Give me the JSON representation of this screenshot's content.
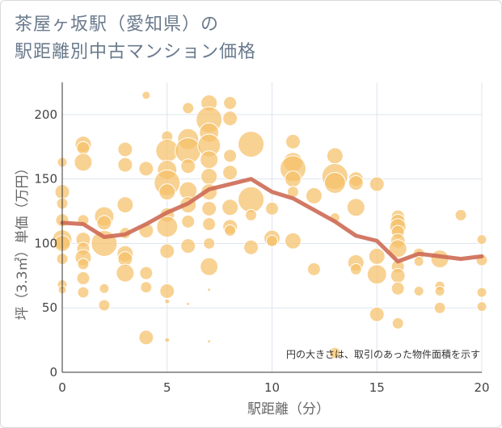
{
  "title_line1": "茶屋ヶ坂駅（愛知県）の",
  "title_line2": "駅距離別中古マンション価格",
  "chart_data": {
    "type": "scatter",
    "title": "茶屋ヶ坂駅（愛知県）の駅距離別中古マンション価格",
    "xlabel": "駅距離（分）",
    "ylabel": "坪（3.3㎡）単価（万円）",
    "xlim": [
      0,
      20
    ],
    "ylim": [
      0,
      225
    ],
    "xticks": [
      "0",
      "5",
      "10",
      "15",
      "20"
    ],
    "yticks": [
      "0",
      "50",
      "100",
      "150",
      "200"
    ],
    "note": "円の大きさは、取引のあった物件面積を示す",
    "colors": {
      "bubble": "#f5c06a",
      "line": "#cd6a55",
      "grid": "#dce5ee"
    },
    "trend": {
      "x": [
        0,
        1,
        2,
        3,
        4,
        5,
        6,
        7,
        8,
        9,
        10,
        11,
        12,
        13,
        14,
        15,
        16,
        17,
        18,
        19,
        20
      ],
      "y": [
        116,
        115,
        105,
        107,
        115,
        124,
        131,
        142,
        146,
        150,
        140,
        135,
        126,
        117,
        106,
        102,
        86,
        92,
        90,
        88,
        90
      ]
    },
    "points": [
      {
        "x": 0,
        "y": 163,
        "s": 6
      },
      {
        "x": 0,
        "y": 140,
        "s": 9
      },
      {
        "x": 0,
        "y": 131,
        "s": 7
      },
      {
        "x": 0,
        "y": 118,
        "s": 8
      },
      {
        "x": 0,
        "y": 103,
        "s": 12
      },
      {
        "x": 0,
        "y": 100,
        "s": 10
      },
      {
        "x": 0,
        "y": 88,
        "s": 7
      },
      {
        "x": 0,
        "y": 68,
        "s": 6
      },
      {
        "x": 0,
        "y": 64,
        "s": 5
      },
      {
        "x": 1,
        "y": 177,
        "s": 10
      },
      {
        "x": 1,
        "y": 174,
        "s": 8
      },
      {
        "x": 1,
        "y": 163,
        "s": 11
      },
      {
        "x": 1,
        "y": 118,
        "s": 7
      },
      {
        "x": 1,
        "y": 103,
        "s": 9
      },
      {
        "x": 1,
        "y": 96,
        "s": 8
      },
      {
        "x": 1,
        "y": 89,
        "s": 10
      },
      {
        "x": 1,
        "y": 84,
        "s": 7
      },
      {
        "x": 1,
        "y": 73,
        "s": 8
      },
      {
        "x": 1,
        "y": 62,
        "s": 7
      },
      {
        "x": 2,
        "y": 121,
        "s": 12
      },
      {
        "x": 2,
        "y": 116,
        "s": 9
      },
      {
        "x": 2,
        "y": 100,
        "s": 16
      },
      {
        "x": 2,
        "y": 65,
        "s": 6
      },
      {
        "x": 2,
        "y": 52,
        "s": 7
      },
      {
        "x": 3,
        "y": 173,
        "s": 9
      },
      {
        "x": 3,
        "y": 161,
        "s": 9
      },
      {
        "x": 3,
        "y": 130,
        "s": 10
      },
      {
        "x": 3,
        "y": 92,
        "s": 10
      },
      {
        "x": 3,
        "y": 88,
        "s": 9
      },
      {
        "x": 3,
        "y": 77,
        "s": 11
      },
      {
        "x": 3,
        "y": 108,
        "s": 7
      },
      {
        "x": 4,
        "y": 158,
        "s": 9
      },
      {
        "x": 4,
        "y": 110,
        "s": 9
      },
      {
        "x": 4,
        "y": 77,
        "s": 8
      },
      {
        "x": 4,
        "y": 66,
        "s": 7
      },
      {
        "x": 4,
        "y": 27,
        "s": 9
      },
      {
        "x": 4,
        "y": 215,
        "s": 5
      },
      {
        "x": 5,
        "y": 183,
        "s": 7
      },
      {
        "x": 5,
        "y": 172,
        "s": 14
      },
      {
        "x": 5,
        "y": 157,
        "s": 12
      },
      {
        "x": 5,
        "y": 147,
        "s": 16
      },
      {
        "x": 5,
        "y": 140,
        "s": 10
      },
      {
        "x": 5,
        "y": 122,
        "s": 9
      },
      {
        "x": 5,
        "y": 113,
        "s": 13
      },
      {
        "x": 5,
        "y": 94,
        "s": 9
      },
      {
        "x": 5,
        "y": 63,
        "s": 9
      },
      {
        "x": 5,
        "y": 55,
        "s": 3
      },
      {
        "x": 5,
        "y": 25,
        "s": 3
      },
      {
        "x": 6,
        "y": 205,
        "s": 7
      },
      {
        "x": 6,
        "y": 181,
        "s": 13
      },
      {
        "x": 6,
        "y": 172,
        "s": 16
      },
      {
        "x": 6,
        "y": 160,
        "s": 9
      },
      {
        "x": 6,
        "y": 141,
        "s": 11
      },
      {
        "x": 6,
        "y": 130,
        "s": 10
      },
      {
        "x": 6,
        "y": 117,
        "s": 8
      },
      {
        "x": 6,
        "y": 98,
        "s": 9
      },
      {
        "x": 6,
        "y": 53,
        "s": 2
      },
      {
        "x": 7,
        "y": 209,
        "s": 10
      },
      {
        "x": 7,
        "y": 196,
        "s": 16
      },
      {
        "x": 7,
        "y": 186,
        "s": 12
      },
      {
        "x": 7,
        "y": 176,
        "s": 14
      },
      {
        "x": 7,
        "y": 165,
        "s": 11
      },
      {
        "x": 7,
        "y": 152,
        "s": 10
      },
      {
        "x": 7,
        "y": 140,
        "s": 10
      },
      {
        "x": 7,
        "y": 127,
        "s": 9
      },
      {
        "x": 7,
        "y": 115,
        "s": 8
      },
      {
        "x": 7,
        "y": 100,
        "s": 7
      },
      {
        "x": 7,
        "y": 82,
        "s": 11
      },
      {
        "x": 7,
        "y": 64,
        "s": 2
      },
      {
        "x": 7,
        "y": 24,
        "s": 2
      },
      {
        "x": 8,
        "y": 209,
        "s": 8
      },
      {
        "x": 8,
        "y": 197,
        "s": 9
      },
      {
        "x": 8,
        "y": 168,
        "s": 8
      },
      {
        "x": 8,
        "y": 155,
        "s": 9
      },
      {
        "x": 8,
        "y": 128,
        "s": 10
      },
      {
        "x": 8,
        "y": 113,
        "s": 9
      },
      {
        "x": 8,
        "y": 110,
        "s": 7
      },
      {
        "x": 9,
        "y": 177,
        "s": 16
      },
      {
        "x": 9,
        "y": 134,
        "s": 16
      },
      {
        "x": 9,
        "y": 122,
        "s": 7
      },
      {
        "x": 9,
        "y": 97,
        "s": 9
      },
      {
        "x": 10,
        "y": 127,
        "s": 8
      },
      {
        "x": 10,
        "y": 104,
        "s": 10
      },
      {
        "x": 10,
        "y": 102,
        "s": 7
      },
      {
        "x": 11,
        "y": 179,
        "s": 9
      },
      {
        "x": 11,
        "y": 163,
        "s": 12
      },
      {
        "x": 11,
        "y": 158,
        "s": 16
      },
      {
        "x": 11,
        "y": 150,
        "s": 10
      },
      {
        "x": 11,
        "y": 140,
        "s": 7
      },
      {
        "x": 11,
        "y": 102,
        "s": 10
      },
      {
        "x": 12,
        "y": 137,
        "s": 10
      },
      {
        "x": 12,
        "y": 80,
        "s": 8
      },
      {
        "x": 13,
        "y": 168,
        "s": 10
      },
      {
        "x": 13,
        "y": 152,
        "s": 16
      },
      {
        "x": 13,
        "y": 147,
        "s": 13
      },
      {
        "x": 13,
        "y": 120,
        "s": 6
      },
      {
        "x": 13,
        "y": 15,
        "s": 7
      },
      {
        "x": 14,
        "y": 150,
        "s": 9
      },
      {
        "x": 14,
        "y": 147,
        "s": 9
      },
      {
        "x": 14,
        "y": 128,
        "s": 11
      },
      {
        "x": 14,
        "y": 85,
        "s": 10
      },
      {
        "x": 14,
        "y": 80,
        "s": 7
      },
      {
        "x": 15,
        "y": 146,
        "s": 9
      },
      {
        "x": 15,
        "y": 90,
        "s": 10
      },
      {
        "x": 15,
        "y": 76,
        "s": 12
      },
      {
        "x": 15,
        "y": 45,
        "s": 9
      },
      {
        "x": 16,
        "y": 121,
        "s": 8
      },
      {
        "x": 16,
        "y": 117,
        "s": 9
      },
      {
        "x": 16,
        "y": 113,
        "s": 10
      },
      {
        "x": 16,
        "y": 109,
        "s": 8
      },
      {
        "x": 16,
        "y": 102,
        "s": 9
      },
      {
        "x": 16,
        "y": 96,
        "s": 11
      },
      {
        "x": 16,
        "y": 82,
        "s": 8
      },
      {
        "x": 16,
        "y": 75,
        "s": 9
      },
      {
        "x": 16,
        "y": 65,
        "s": 8
      },
      {
        "x": 16,
        "y": 38,
        "s": 7
      },
      {
        "x": 17,
        "y": 92,
        "s": 7
      },
      {
        "x": 17,
        "y": 86,
        "s": 6
      },
      {
        "x": 17,
        "y": 63,
        "s": 6
      },
      {
        "x": 18,
        "y": 88,
        "s": 11
      },
      {
        "x": 18,
        "y": 67,
        "s": 6
      },
      {
        "x": 18,
        "y": 63,
        "s": 6
      },
      {
        "x": 18,
        "y": 50,
        "s": 7
      },
      {
        "x": 19,
        "y": 122,
        "s": 7
      },
      {
        "x": 20,
        "y": 103,
        "s": 6
      },
      {
        "x": 20,
        "y": 87,
        "s": 7
      },
      {
        "x": 20,
        "y": 62,
        "s": 6
      },
      {
        "x": 20,
        "y": 51,
        "s": 6
      }
    ]
  }
}
